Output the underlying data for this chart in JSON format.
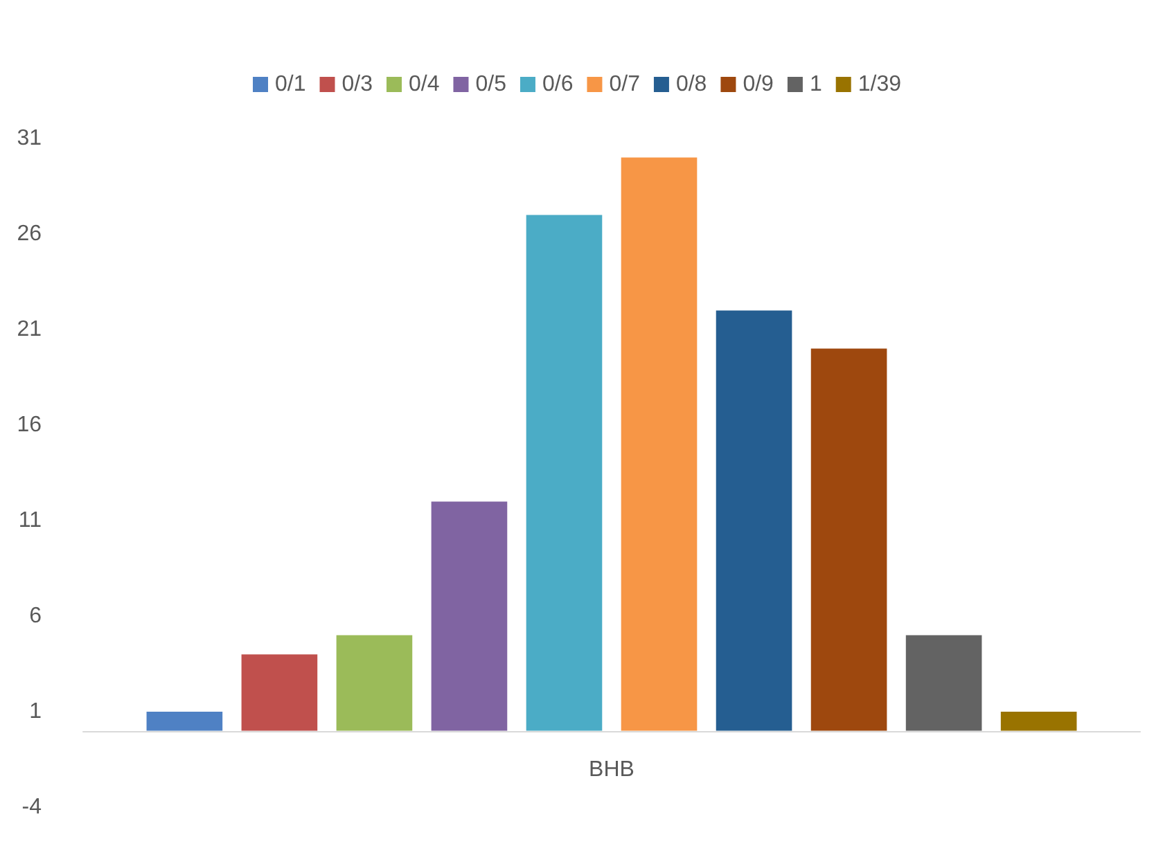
{
  "chart_data": {
    "type": "bar",
    "categories": [
      "BHB"
    ],
    "series": [
      {
        "name": "0/1",
        "color": "#4f81c4",
        "values": [
          1
        ]
      },
      {
        "name": "0/3",
        "color": "#c0504d",
        "values": [
          4
        ]
      },
      {
        "name": "0/4",
        "color": "#9bbb59",
        "values": [
          5
        ]
      },
      {
        "name": "0/5",
        "color": "#8064a2",
        "values": [
          12
        ]
      },
      {
        "name": "0/6",
        "color": "#4bacc6",
        "values": [
          27
        ]
      },
      {
        "name": "0/7",
        "color": "#f79646",
        "values": [
          30
        ]
      },
      {
        "name": "0/8",
        "color": "#255e91",
        "values": [
          22
        ]
      },
      {
        "name": "0/9",
        "color": "#9e480e",
        "values": [
          20
        ]
      },
      {
        "name": "1",
        "color": "#636363",
        "values": [
          5
        ]
      },
      {
        "name": "1/39",
        "color": "#997300",
        "values": [
          1
        ]
      }
    ],
    "ylim": [
      -4,
      31
    ],
    "yticks": [
      -4,
      1,
      6,
      11,
      16,
      21,
      26,
      31
    ],
    "grid": false,
    "legend": "top"
  }
}
